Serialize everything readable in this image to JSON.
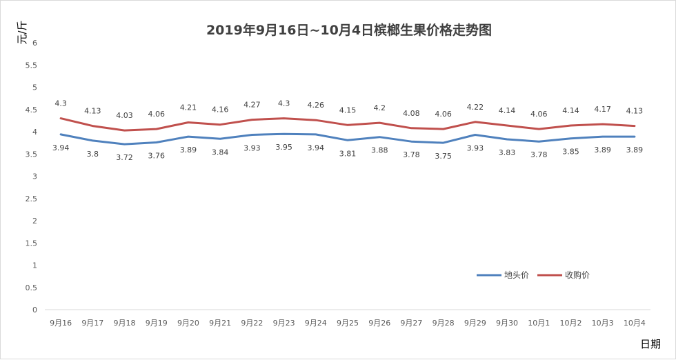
{
  "chart_data": {
    "type": "line",
    "title": "2019年9月16日~10月4日槟榔生果价格走势图",
    "ylabel": "元/斤",
    "xlabel": "日期",
    "ylim": [
      0,
      6
    ],
    "yticks": [
      0,
      0.5,
      1,
      1.5,
      2,
      2.5,
      3,
      3.5,
      4,
      4.5,
      5,
      5.5,
      6
    ],
    "grid": false,
    "legend": "bottom-right",
    "categories": [
      "9月16",
      "9月17",
      "9月18",
      "9月19",
      "9月20",
      "9月21",
      "9月22",
      "9月23",
      "9月24",
      "9月25",
      "9月26",
      "9月27",
      "9月28",
      "9月29",
      "9月30",
      "10月1",
      "10月2",
      "10月3",
      "10月4"
    ],
    "series": [
      {
        "name": "地头价",
        "color": "#4f81bd",
        "label_position": "below",
        "values": [
          3.94,
          3.8,
          3.72,
          3.76,
          3.89,
          3.84,
          3.93,
          3.95,
          3.94,
          3.81,
          3.88,
          3.78,
          3.75,
          3.93,
          3.83,
          3.78,
          3.85,
          3.89,
          3.89
        ]
      },
      {
        "name": "收购价",
        "color": "#c0504d",
        "label_position": "above",
        "values": [
          4.3,
          4.13,
          4.03,
          4.06,
          4.21,
          4.16,
          4.27,
          4.3,
          4.26,
          4.15,
          4.2,
          4.08,
          4.06,
          4.22,
          4.14,
          4.06,
          4.14,
          4.17,
          4.13
        ]
      }
    ]
  }
}
